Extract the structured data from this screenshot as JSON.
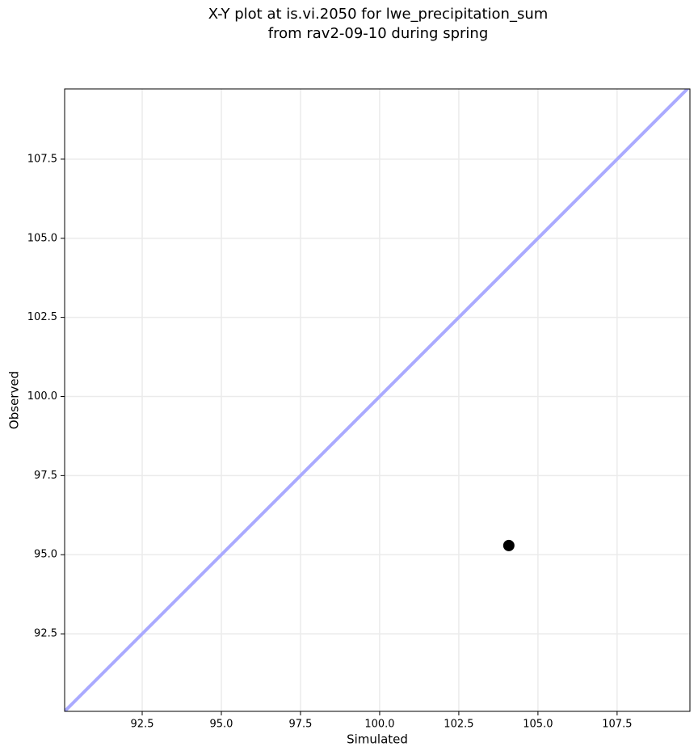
{
  "chart_data": {
    "type": "scatter",
    "title": [
      "X-Y plot at is.vi.2050 for lwe_precipitation_sum",
      "from rav2-09-10 during spring"
    ],
    "x_label": "Simulated",
    "y_label": "Observed",
    "x": [
      104.08
    ],
    "values": [
      95.29
    ],
    "color": "#000000",
    "identity_line": true,
    "identity_color": "#aaaaff",
    "xlim": [
      90.05,
      109.8
    ],
    "ylim": [
      90.05,
      109.72
    ],
    "xticks": [
      92.5,
      {
        "value": 95,
        "label": "95.0"
      },
      97.5,
      {
        "value": 100,
        "label": "100.0"
      },
      102.5,
      {
        "value": 105,
        "label": "105.0"
      },
      107.5
    ],
    "yticks": [
      92.5,
      {
        "value": 95,
        "label": "95.0"
      },
      97.5,
      {
        "value": 100,
        "label": "100.0"
      },
      102.5,
      {
        "value": 105,
        "label": "105.0"
      },
      107.5
    ],
    "grid": true
  }
}
